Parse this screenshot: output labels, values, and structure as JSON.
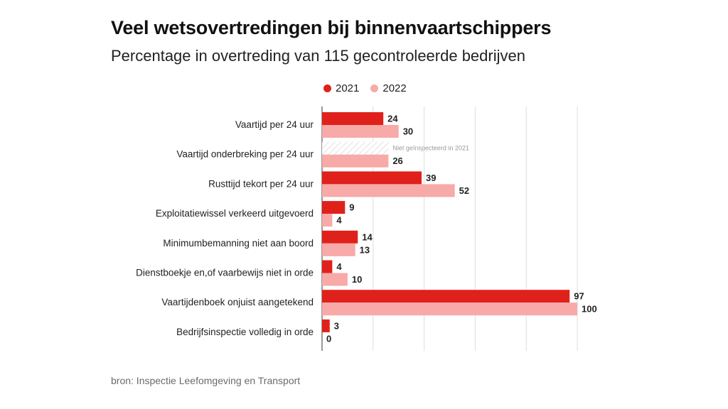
{
  "chart_data": {
    "type": "bar",
    "orientation": "horizontal",
    "title": "Veel wetsovertredingen bij binnenvaartschippers",
    "subtitle": "Percentage in overtreding van 115 gecontroleerde bedrijven",
    "source": "bron: Inspectie Leefomgeving en Transport",
    "categories": [
      "Vaartijd per 24 uur",
      "Vaartijd onderbreking per 24 uur",
      "Rusttijd tekort per 24 uur",
      "Exploitatiewissel verkeerd uitgevoerd",
      "Minimumbemanning niet aan boord",
      "Dienstboekje en,of vaarbewijs niet in orde",
      "Vaartijdenboek onjuist aangetekend",
      "Bedrijfsinspectie volledig in orde"
    ],
    "series": [
      {
        "name": "2021",
        "color": "#e0211b",
        "values": [
          24,
          null,
          39,
          9,
          14,
          4,
          97,
          3
        ]
      },
      {
        "name": "2022",
        "color": "#f7aaa8",
        "values": [
          30,
          26,
          52,
          4,
          13,
          10,
          100,
          0
        ]
      }
    ],
    "annotations": [
      {
        "category_index": 1,
        "series_index": 0,
        "text": "Niet geïnspecteerd in 2021"
      }
    ],
    "xlim": [
      0,
      100
    ],
    "grid": true,
    "legend_position": "top"
  }
}
